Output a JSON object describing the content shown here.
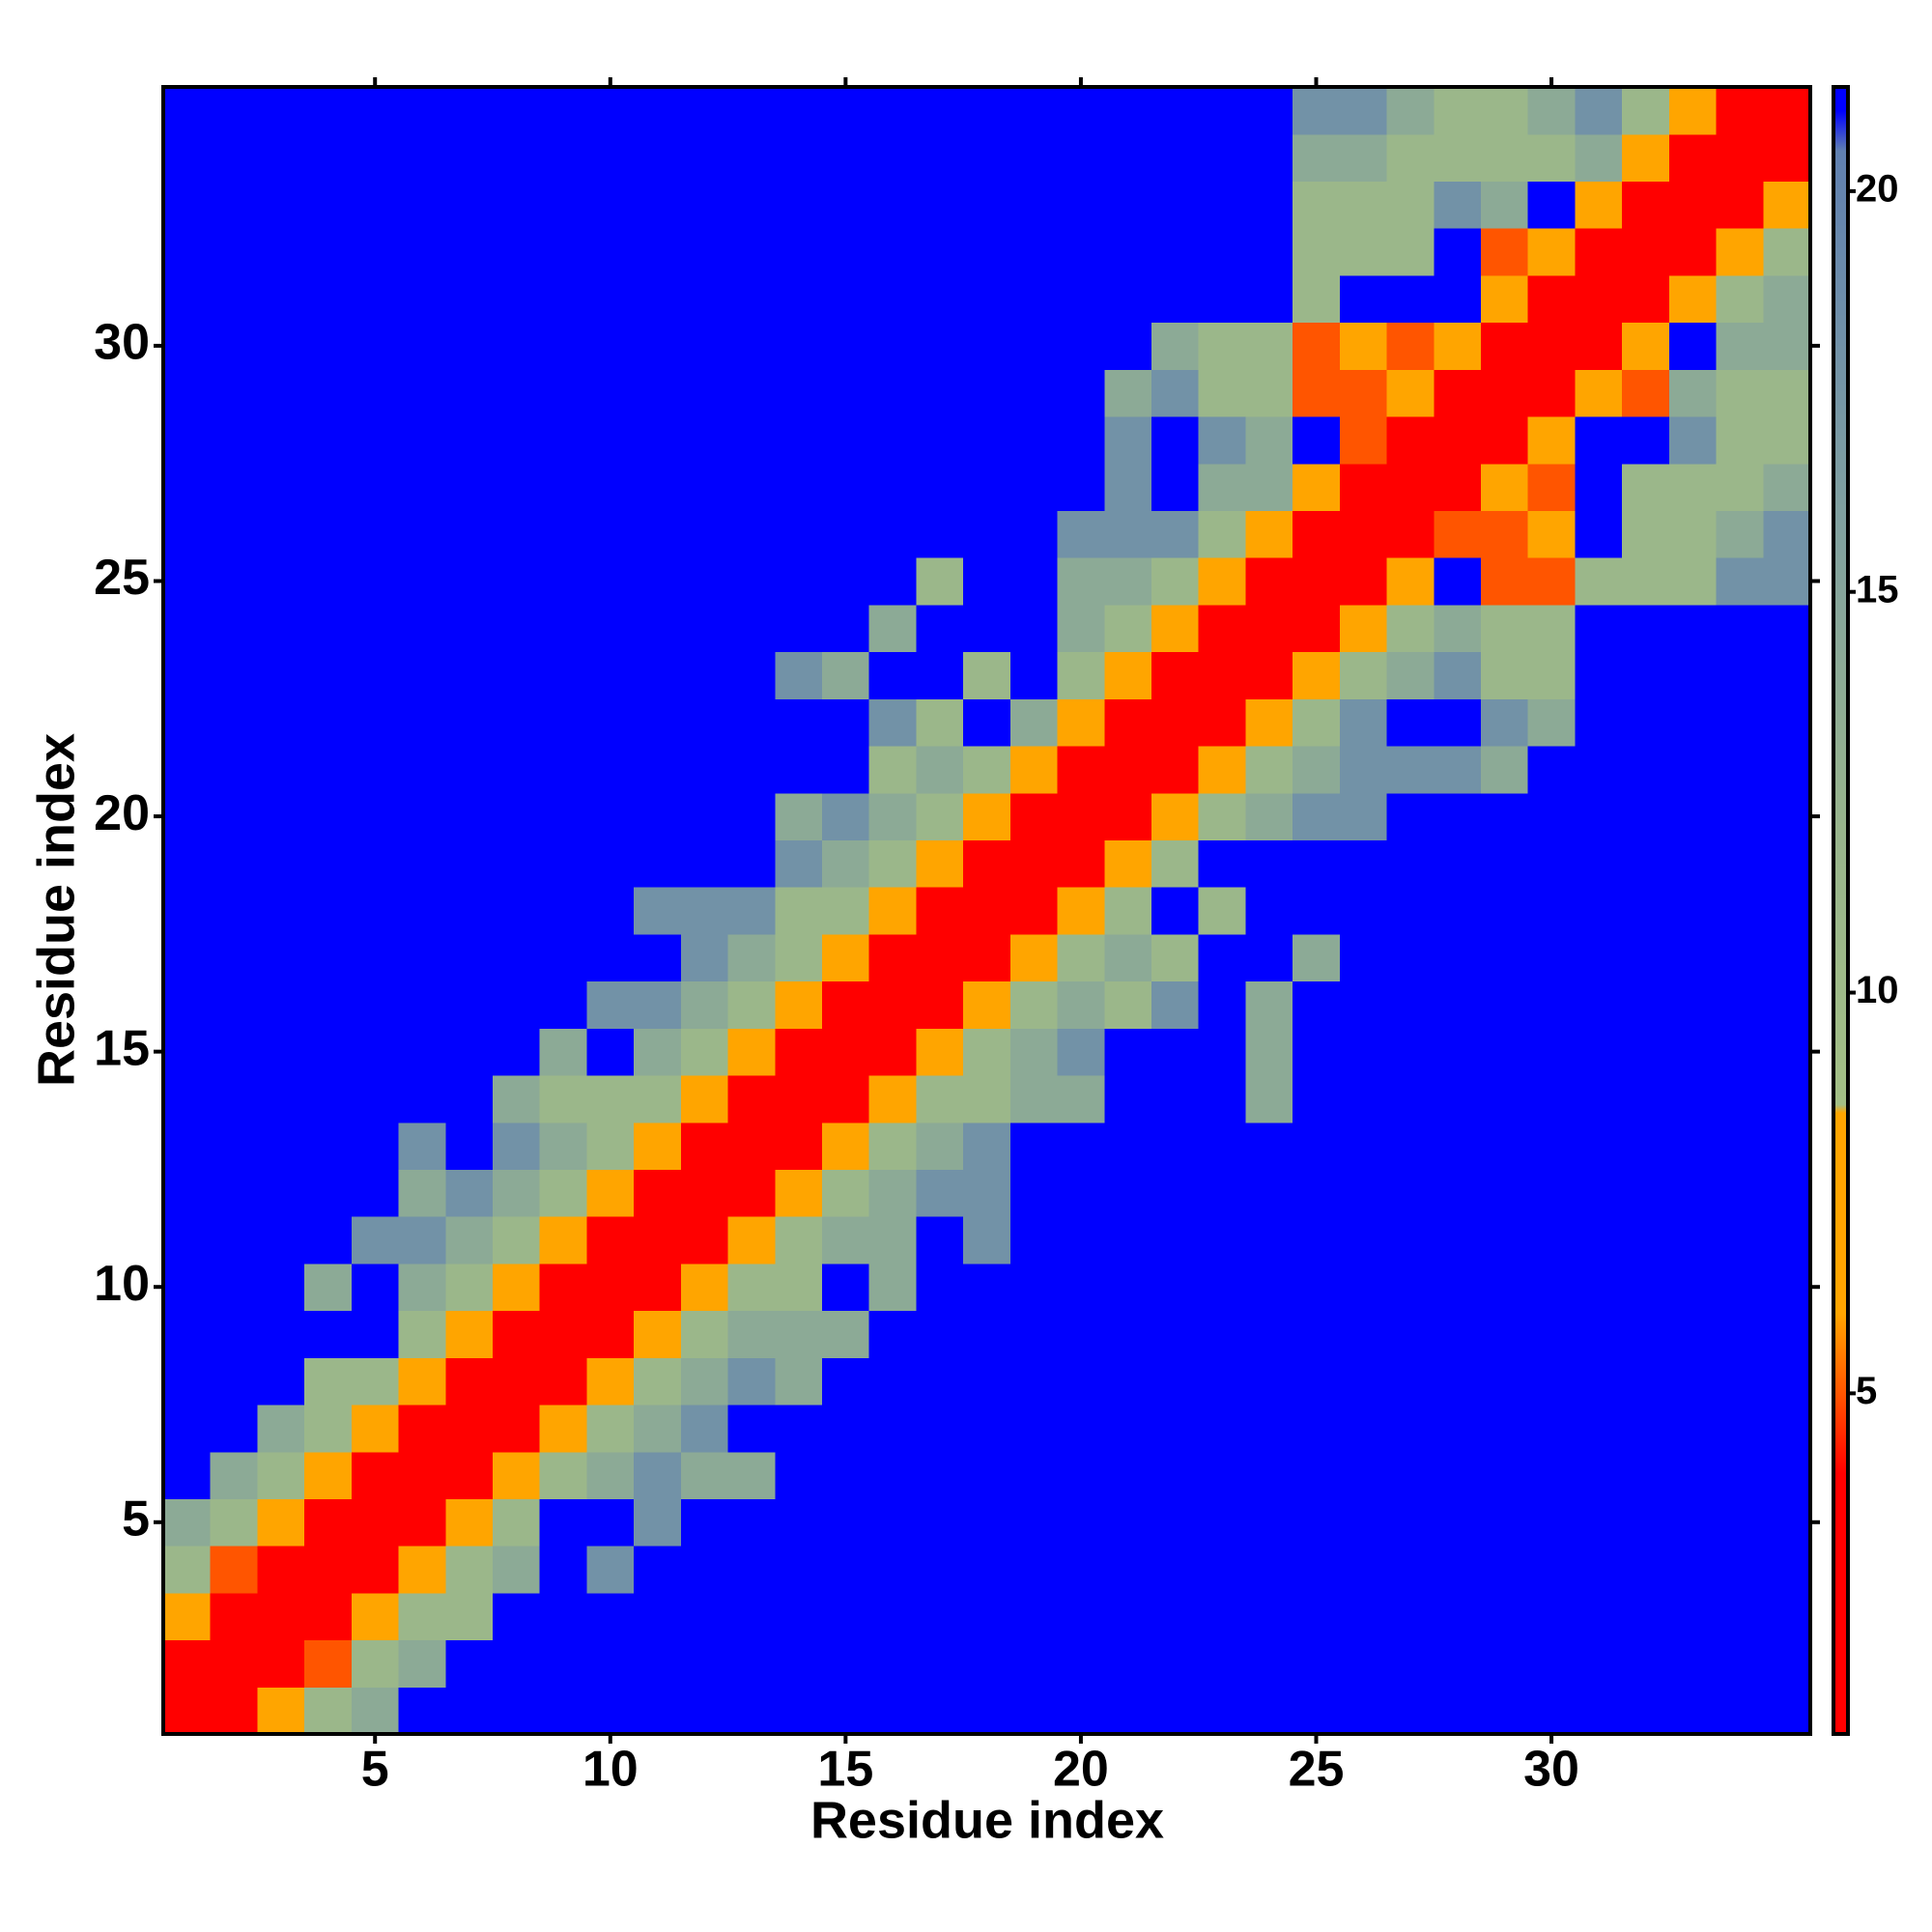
{
  "chart_data": {
    "type": "heatmap",
    "x_label": "Residue index",
    "y_label": "Residue index",
    "x": [
      1,
      2,
      3,
      4,
      5,
      6,
      7,
      8,
      9,
      10,
      11,
      12,
      13,
      14,
      15,
      16,
      17,
      18,
      19,
      20,
      21,
      22,
      23,
      24,
      25,
      26,
      27,
      28,
      29,
      30,
      31,
      32,
      33,
      34,
      35
    ],
    "y": [
      1,
      2,
      3,
      4,
      5,
      6,
      7,
      8,
      9,
      10,
      11,
      12,
      13,
      14,
      15,
      16,
      17,
      18,
      19,
      20,
      21,
      22,
      23,
      24,
      25,
      26,
      27,
      28,
      29,
      30,
      31,
      32,
      33,
      34,
      35
    ],
    "xlim": [
      0.5,
      35.5
    ],
    "ylim": [
      0.5,
      35.5
    ],
    "xticks": [
      5,
      10,
      15,
      20,
      25,
      30
    ],
    "yticks": [
      5,
      10,
      15,
      20,
      25,
      30
    ],
    "zlim": [
      0.75,
      21.3
    ],
    "zticks": [
      5,
      10,
      15,
      20
    ],
    "colorscale": [
      {
        "value": 0.75,
        "color": "#ff0000"
      },
      {
        "value": 4,
        "color": "#ff0000"
      },
      {
        "value": 5,
        "color": "#ff5500"
      },
      {
        "value": 6,
        "color": "#ffa500"
      },
      {
        "value": 8.5,
        "color": "#ffa500"
      },
      {
        "value": 8.6,
        "color": "#a3bf85"
      },
      {
        "value": 12,
        "color": "#98b48c"
      },
      {
        "value": 16,
        "color": "#80a0a0"
      },
      {
        "value": 20.5,
        "color": "#6080b0"
      },
      {
        "value": 21,
        "color": "#0000ff"
      },
      {
        "value": 21.3,
        "color": "#0000ff"
      }
    ],
    "z": [
      [
        3,
        3,
        7,
        11,
        14,
        21,
        21,
        21,
        21,
        21,
        21,
        21,
        21,
        21,
        21,
        21,
        21,
        21,
        21,
        21,
        21,
        21,
        21,
        21,
        21,
        21,
        21,
        21,
        21,
        21,
        21,
        21,
        21,
        21,
        21
      ],
      [
        3,
        3,
        3,
        5,
        11,
        14,
        21,
        21,
        21,
        21,
        21,
        21,
        21,
        21,
        21,
        21,
        21,
        21,
        21,
        21,
        21,
        21,
        21,
        21,
        21,
        21,
        21,
        21,
        21,
        21,
        21,
        21,
        21,
        21,
        21
      ],
      [
        7,
        3,
        3,
        3,
        7,
        11,
        11,
        21,
        21,
        21,
        21,
        21,
        21,
        21,
        21,
        21,
        21,
        21,
        21,
        21,
        21,
        21,
        21,
        21,
        21,
        21,
        21,
        21,
        21,
        21,
        21,
        21,
        21,
        21,
        21
      ],
      [
        11,
        5,
        3,
        3,
        3,
        7,
        11,
        14,
        21,
        18,
        21,
        21,
        21,
        21,
        21,
        21,
        21,
        21,
        21,
        21,
        21,
        21,
        21,
        21,
        21,
        21,
        21,
        21,
        21,
        21,
        21,
        21,
        21,
        21,
        21
      ],
      [
        14,
        11,
        7,
        3,
        3,
        3,
        7,
        11,
        21,
        21,
        18,
        21,
        21,
        21,
        21,
        21,
        21,
        21,
        21,
        21,
        21,
        21,
        21,
        21,
        21,
        21,
        21,
        21,
        21,
        21,
        21,
        21,
        21,
        21,
        21
      ],
      [
        21,
        14,
        11,
        7,
        3,
        3,
        3,
        7,
        11,
        14,
        18,
        14,
        14,
        21,
        21,
        21,
        21,
        21,
        21,
        21,
        21,
        21,
        21,
        21,
        21,
        21,
        21,
        21,
        21,
        21,
        21,
        21,
        21,
        21,
        21
      ],
      [
        21,
        21,
        14,
        11,
        7,
        3,
        3,
        3,
        7,
        11,
        14,
        18,
        21,
        21,
        21,
        21,
        21,
        21,
        21,
        21,
        21,
        21,
        21,
        21,
        21,
        21,
        21,
        21,
        21,
        21,
        21,
        21,
        21,
        21,
        21
      ],
      [
        21,
        21,
        21,
        11,
        11,
        7,
        3,
        3,
        3,
        7,
        11,
        14,
        18,
        14,
        21,
        21,
        21,
        21,
        21,
        21,
        21,
        21,
        21,
        21,
        21,
        21,
        21,
        21,
        21,
        21,
        21,
        21,
        21,
        21,
        21
      ],
      [
        21,
        21,
        21,
        21,
        21,
        11,
        7,
        3,
        3,
        3,
        7,
        11,
        14,
        14,
        14,
        21,
        21,
        21,
        21,
        21,
        21,
        21,
        21,
        21,
        21,
        21,
        21,
        21,
        21,
        21,
        21,
        21,
        21,
        21,
        21
      ],
      [
        21,
        21,
        21,
        14,
        21,
        14,
        11,
        7,
        3,
        3,
        3,
        7,
        11,
        11,
        21,
        14,
        21,
        21,
        21,
        21,
        21,
        21,
        21,
        21,
        21,
        21,
        21,
        21,
        21,
        21,
        21,
        21,
        21,
        21,
        21
      ],
      [
        21,
        21,
        21,
        21,
        18,
        18,
        14,
        11,
        7,
        3,
        3,
        3,
        7,
        11,
        14,
        14,
        21,
        18,
        21,
        21,
        21,
        21,
        21,
        21,
        21,
        21,
        21,
        21,
        21,
        21,
        21,
        21,
        21,
        21,
        21
      ],
      [
        21,
        21,
        21,
        21,
        21,
        14,
        18,
        14,
        11,
        7,
        3,
        3,
        3,
        7,
        11,
        14,
        18,
        18,
        21,
        21,
        21,
        21,
        21,
        21,
        21,
        21,
        21,
        21,
        21,
        21,
        21,
        21,
        21,
        21,
        21
      ],
      [
        21,
        21,
        21,
        21,
        21,
        18,
        21,
        18,
        14,
        11,
        7,
        3,
        3,
        3,
        7,
        11,
        14,
        18,
        21,
        21,
        21,
        21,
        21,
        21,
        21,
        21,
        21,
        21,
        21,
        21,
        21,
        21,
        21,
        21,
        21
      ],
      [
        21,
        21,
        21,
        21,
        21,
        21,
        21,
        14,
        11,
        11,
        11,
        7,
        3,
        3,
        3,
        7,
        11,
        11,
        14,
        14,
        21,
        21,
        21,
        14,
        21,
        21,
        21,
        21,
        21,
        21,
        21,
        21,
        21,
        21,
        21
      ],
      [
        21,
        21,
        21,
        21,
        21,
        21,
        21,
        21,
        14,
        21,
        14,
        11,
        7,
        3,
        3,
        3,
        7,
        11,
        14,
        18,
        21,
        21,
        21,
        14,
        21,
        21,
        21,
        21,
        21,
        21,
        21,
        21,
        21,
        21,
        21
      ],
      [
        21,
        21,
        21,
        21,
        21,
        21,
        21,
        21,
        21,
        18,
        18,
        14,
        11,
        7,
        3,
        3,
        3,
        7,
        11,
        14,
        11,
        18,
        21,
        14,
        21,
        21,
        21,
        21,
        21,
        21,
        21,
        21,
        21,
        21,
        21
      ],
      [
        21,
        21,
        21,
        21,
        21,
        21,
        21,
        21,
        21,
        21,
        21,
        18,
        14,
        11,
        7,
        3,
        3,
        3,
        7,
        11,
        14,
        11,
        21,
        21,
        14,
        21,
        21,
        21,
        21,
        21,
        21,
        21,
        21,
        21,
        21
      ],
      [
        21,
        21,
        21,
        21,
        21,
        21,
        21,
        21,
        21,
        21,
        18,
        18,
        18,
        11,
        11,
        7,
        3,
        3,
        3,
        7,
        11,
        21,
        11,
        21,
        21,
        21,
        21,
        21,
        21,
        21,
        21,
        21,
        21,
        21,
        21
      ],
      [
        21,
        21,
        21,
        21,
        21,
        21,
        21,
        21,
        21,
        21,
        21,
        21,
        21,
        18,
        14,
        11,
        7,
        3,
        3,
        3,
        7,
        11,
        21,
        21,
        21,
        21,
        21,
        21,
        21,
        21,
        21,
        21,
        21,
        21,
        21
      ],
      [
        21,
        21,
        21,
        21,
        21,
        21,
        21,
        21,
        21,
        21,
        21,
        21,
        21,
        14,
        18,
        14,
        11,
        7,
        3,
        3,
        3,
        7,
        11,
        14,
        18,
        18,
        21,
        21,
        21,
        21,
        21,
        21,
        21,
        21,
        21
      ],
      [
        21,
        21,
        21,
        21,
        21,
        21,
        21,
        21,
        21,
        21,
        21,
        21,
        21,
        21,
        21,
        11,
        14,
        11,
        7,
        3,
        3,
        3,
        7,
        11,
        14,
        18,
        18,
        18,
        14,
        21,
        21,
        21,
        21,
        21,
        21
      ],
      [
        21,
        21,
        21,
        21,
        21,
        21,
        21,
        21,
        21,
        21,
        21,
        21,
        21,
        21,
        21,
        18,
        11,
        21,
        14,
        7,
        3,
        3,
        3,
        7,
        11,
        18,
        21,
        21,
        18,
        14,
        21,
        21,
        21,
        21,
        21
      ],
      [
        21,
        21,
        21,
        21,
        21,
        21,
        21,
        21,
        21,
        21,
        21,
        21,
        21,
        18,
        14,
        21,
        21,
        11,
        21,
        11,
        7,
        3,
        3,
        3,
        7,
        11,
        14,
        18,
        11,
        11,
        21,
        21,
        21,
        21,
        21
      ],
      [
        21,
        21,
        21,
        21,
        21,
        21,
        21,
        21,
        21,
        21,
        21,
        21,
        21,
        21,
        21,
        14,
        21,
        21,
        21,
        14,
        11,
        7,
        3,
        3,
        3,
        7,
        11,
        14,
        11,
        11,
        21,
        21,
        21,
        21,
        21
      ],
      [
        21,
        21,
        21,
        21,
        21,
        21,
        21,
        21,
        21,
        21,
        21,
        21,
        21,
        21,
        21,
        21,
        11,
        21,
        21,
        14,
        14,
        11,
        7,
        3,
        3,
        3,
        7,
        21,
        5,
        5,
        11,
        11,
        11,
        18,
        18
      ],
      [
        21,
        21,
        21,
        21,
        21,
        21,
        21,
        21,
        21,
        21,
        21,
        21,
        21,
        21,
        21,
        21,
        21,
        21,
        21,
        18,
        18,
        18,
        11,
        7,
        3,
        3,
        3,
        5,
        5,
        7,
        21,
        11,
        11,
        14,
        18
      ],
      [
        21,
        21,
        21,
        21,
        21,
        21,
        21,
        21,
        21,
        21,
        21,
        21,
        21,
        21,
        21,
        21,
        21,
        21,
        21,
        21,
        18,
        21,
        14,
        14,
        7,
        3,
        3,
        3,
        7,
        5,
        21,
        11,
        11,
        11,
        14
      ],
      [
        21,
        21,
        21,
        21,
        21,
        21,
        21,
        21,
        21,
        21,
        21,
        21,
        21,
        21,
        21,
        21,
        21,
        21,
        21,
        21,
        18,
        21,
        18,
        14,
        21,
        5,
        3,
        3,
        3,
        7,
        21,
        21,
        18,
        11,
        11
      ],
      [
        21,
        21,
        21,
        21,
        21,
        21,
        21,
        21,
        21,
        21,
        21,
        21,
        21,
        21,
        21,
        21,
        21,
        21,
        21,
        21,
        14,
        18,
        11,
        11,
        5,
        5,
        7,
        3,
        3,
        3,
        7,
        5,
        14,
        11,
        11
      ],
      [
        21,
        21,
        21,
        21,
        21,
        21,
        21,
        21,
        21,
        21,
        21,
        21,
        21,
        21,
        21,
        21,
        21,
        21,
        21,
        21,
        21,
        14,
        11,
        11,
        5,
        7,
        5,
        7,
        3,
        3,
        3,
        7,
        21,
        14,
        14
      ],
      [
        21,
        21,
        21,
        21,
        21,
        21,
        21,
        21,
        21,
        21,
        21,
        21,
        21,
        21,
        21,
        21,
        21,
        21,
        21,
        21,
        21,
        21,
        21,
        21,
        11,
        21,
        21,
        21,
        7,
        3,
        3,
        3,
        7,
        11,
        14
      ],
      [
        21,
        21,
        21,
        21,
        21,
        21,
        21,
        21,
        21,
        21,
        21,
        21,
        21,
        21,
        21,
        21,
        21,
        21,
        21,
        21,
        21,
        21,
        21,
        21,
        11,
        11,
        11,
        21,
        5,
        7,
        3,
        3,
        3,
        7,
        11
      ],
      [
        21,
        21,
        21,
        21,
        21,
        21,
        21,
        21,
        21,
        21,
        21,
        21,
        21,
        21,
        21,
        21,
        21,
        21,
        21,
        21,
        21,
        21,
        21,
        21,
        11,
        11,
        11,
        18,
        14,
        21,
        7,
        3,
        3,
        3,
        7
      ],
      [
        21,
        21,
        21,
        21,
        21,
        21,
        21,
        21,
        21,
        21,
        21,
        21,
        21,
        21,
        21,
        21,
        21,
        21,
        21,
        21,
        21,
        21,
        21,
        21,
        14,
        14,
        11,
        11,
        11,
        11,
        14,
        7,
        3,
        3,
        3
      ],
      [
        21,
        21,
        21,
        21,
        21,
        21,
        21,
        21,
        21,
        21,
        21,
        21,
        21,
        21,
        21,
        21,
        21,
        21,
        21,
        21,
        21,
        21,
        21,
        21,
        18,
        18,
        14,
        11,
        11,
        14,
        18,
        11,
        7,
        3,
        3
      ]
    ]
  }
}
